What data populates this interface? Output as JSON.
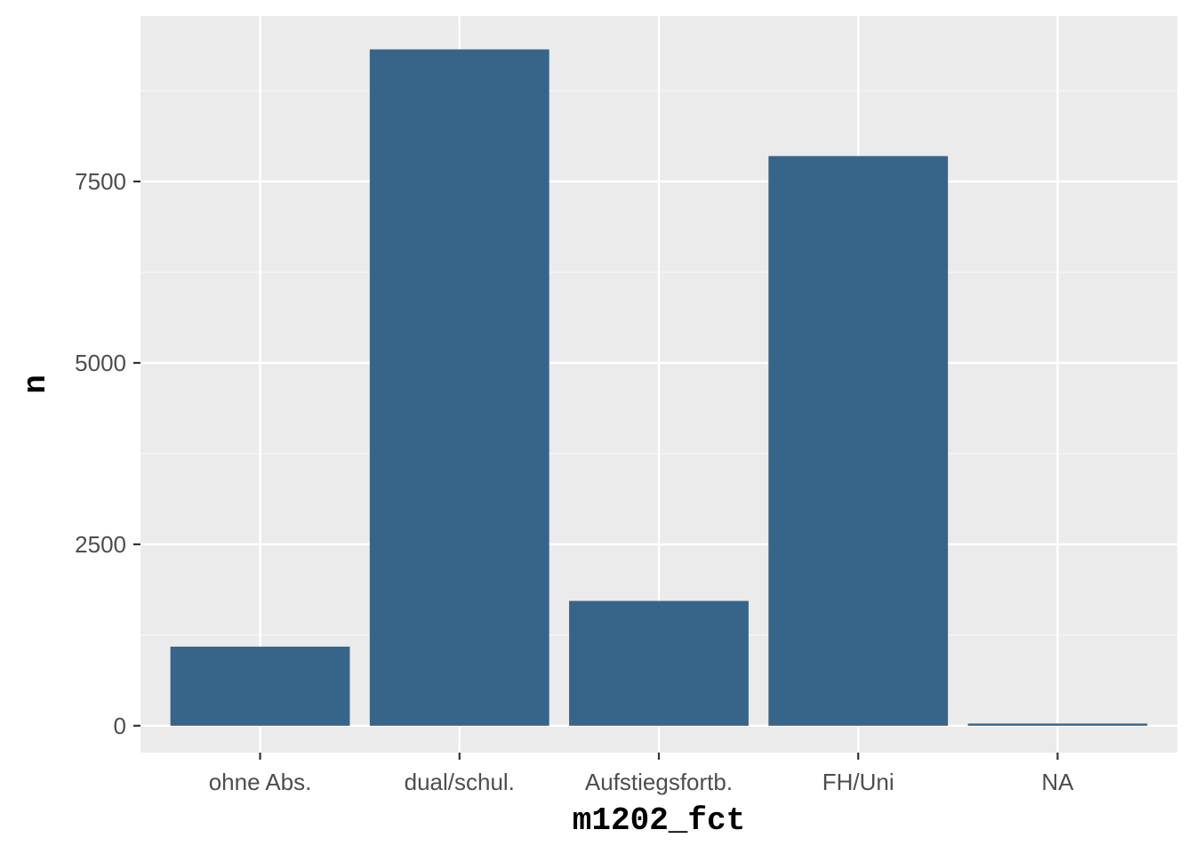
{
  "chart_data": {
    "type": "bar",
    "categories": [
      "ohne Abs.",
      "dual/schul.",
      "Aufstiegsfortb.",
      "FH/Uni",
      "NA"
    ],
    "values": [
      1090,
      9320,
      1720,
      7850,
      30
    ],
    "xlabel": "m1202_fct",
    "ylabel": "n",
    "ylim": [
      -370,
      9780
    ],
    "yticks": [
      0,
      2500,
      5000,
      7500
    ],
    "ytick_labels": [
      "0",
      "2500",
      "5000",
      "7500"
    ],
    "grid": true,
    "legend": "none"
  },
  "colors": {
    "bar": "#376489",
    "panel_background": "#ebebeb",
    "grid_major": "#ffffff",
    "grid_minor": "#f6f6f6",
    "tick_text": "#4d4d4d",
    "tick_mark": "#333333",
    "axis_title": "#000000"
  }
}
